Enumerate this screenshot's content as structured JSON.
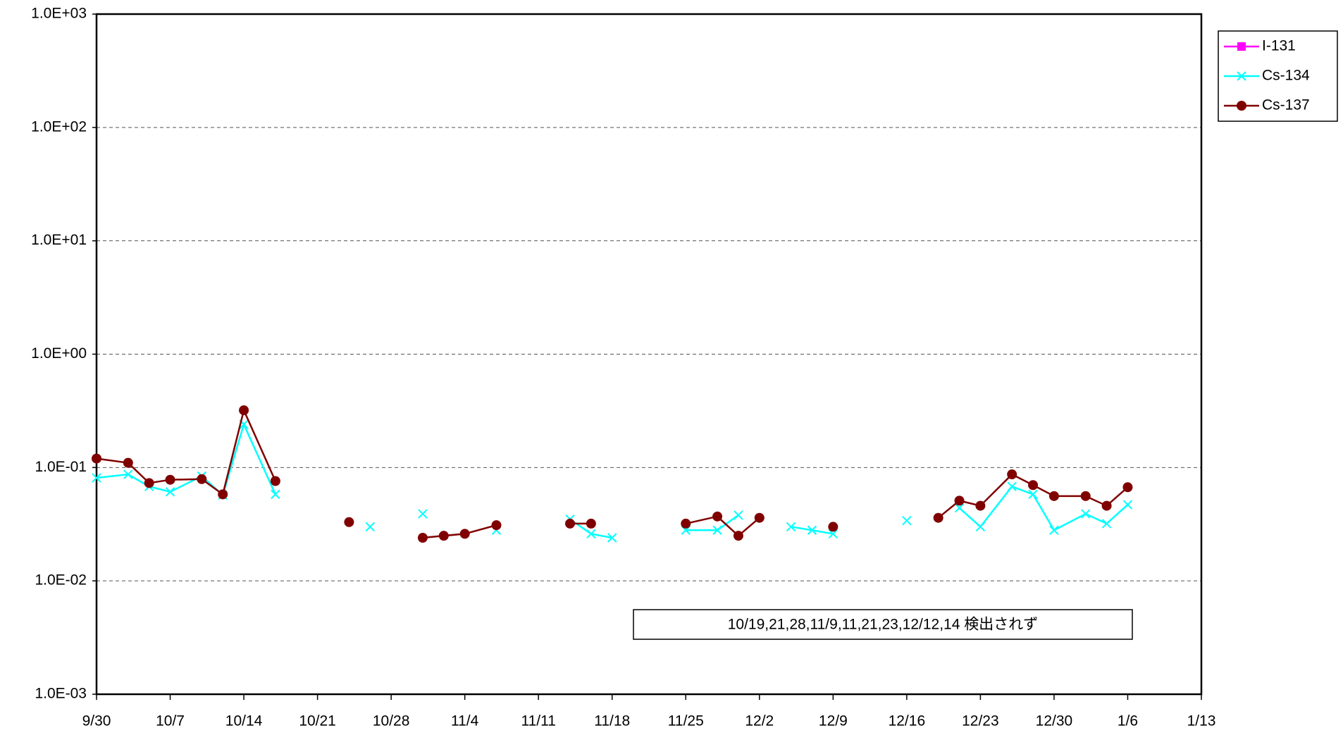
{
  "chart_data": {
    "type": "line",
    "x": [
      "9/30",
      "10/3",
      "10/5",
      "10/7",
      "10/10",
      "10/12",
      "10/14",
      "10/17",
      "10/19",
      "10/21",
      "10/24",
      "10/26",
      "10/28",
      "10/31",
      "11/2",
      "11/4",
      "11/7",
      "11/9",
      "11/11",
      "11/14",
      "11/16",
      "11/18",
      "11/21",
      "11/23",
      "11/25",
      "11/28",
      "11/30",
      "12/2",
      "12/5",
      "12/7",
      "12/9",
      "12/12",
      "12/14",
      "12/16",
      "12/19",
      "12/21",
      "12/23",
      "12/26",
      "12/28",
      "12/30",
      "1/2",
      "1/4",
      "1/6"
    ],
    "series": [
      {
        "name": "I-131",
        "color": "#ff00ff",
        "marker": "square",
        "values": [
          null,
          null,
          null,
          null,
          null,
          null,
          null,
          null,
          null,
          null,
          null,
          null,
          null,
          null,
          null,
          null,
          null,
          null,
          null,
          null,
          null,
          null,
          null,
          null,
          null,
          null,
          null,
          null,
          null,
          null,
          null,
          null,
          null,
          null,
          null,
          null,
          null,
          null,
          null,
          null,
          null,
          null,
          null
        ]
      },
      {
        "name": "Cs-134",
        "color": "#00ffff",
        "marker": "x",
        "values": [
          0.081,
          0.087,
          0.068,
          0.061,
          0.084,
          0.057,
          0.24,
          0.058,
          null,
          null,
          null,
          0.03,
          null,
          0.039,
          null,
          null,
          0.028,
          null,
          null,
          0.035,
          0.026,
          0.024,
          null,
          null,
          0.028,
          0.028,
          0.038,
          null,
          0.03,
          0.028,
          0.026,
          null,
          null,
          0.034,
          null,
          0.044,
          0.03,
          0.068,
          0.058,
          0.028,
          0.039,
          0.032,
          0.047
        ]
      },
      {
        "name": "Cs-137",
        "color": "#800000",
        "marker": "circle",
        "values": [
          0.12,
          0.11,
          0.073,
          0.078,
          0.079,
          0.058,
          0.32,
          0.076,
          null,
          null,
          0.033,
          null,
          null,
          0.024,
          0.025,
          0.026,
          0.031,
          null,
          null,
          0.032,
          0.032,
          null,
          null,
          null,
          0.032,
          0.037,
          0.025,
          0.036,
          null,
          null,
          0.03,
          null,
          null,
          null,
          0.036,
          0.051,
          0.046,
          0.087,
          0.07,
          0.056,
          0.056,
          0.046,
          0.067
        ]
      }
    ],
    "xlim": [
      "9/30",
      "1/13"
    ],
    "xticks": [
      "9/30",
      "10/7",
      "10/14",
      "10/21",
      "10/28",
      "11/4",
      "11/11",
      "11/18",
      "11/25",
      "12/2",
      "12/9",
      "12/16",
      "12/23",
      "12/30",
      "1/6",
      "1/13"
    ],
    "ylim": [
      0.001,
      1000
    ],
    "yticks": [
      {
        "value": 0.001,
        "label": "1.0E-03"
      },
      {
        "value": 0.01,
        "label": "1.0E-02"
      },
      {
        "value": 0.1,
        "label": "1.0E-01"
      },
      {
        "value": 1,
        "label": "1.0E+00"
      },
      {
        "value": 10,
        "label": "1.0E+01"
      },
      {
        "value": 100,
        "label": "1.0E+02"
      },
      {
        "value": 1000,
        "label": "1.0E+03"
      }
    ],
    "log_y": true,
    "grid": true,
    "legend": "right",
    "annotation": "10/19,21,28,11/9,11,21,23,12/12,14  検出されず"
  }
}
